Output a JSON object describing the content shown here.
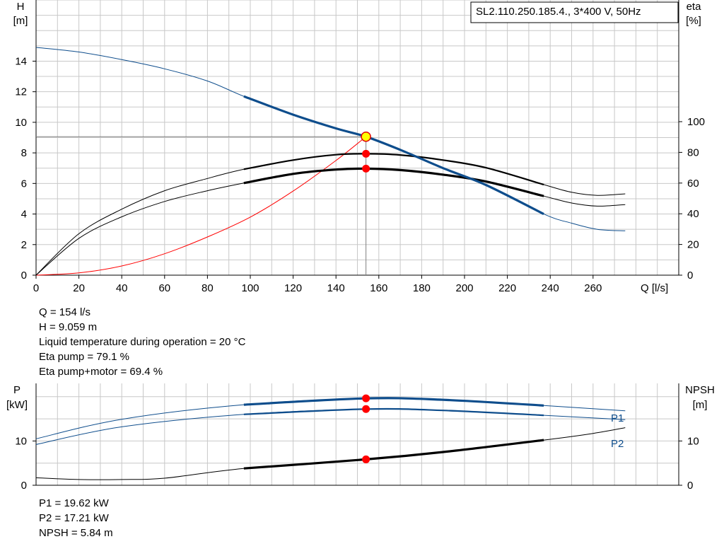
{
  "pump_label": "SL2.110.250.185.4., 3*400 V, 50Hz",
  "colors": {
    "head": "#0e4d8c",
    "eta": "#000000",
    "system": "#ff0000",
    "grid": "#c8c8c8",
    "op_marker": "#ff0000",
    "duty_marker_fill": "#ffff00"
  },
  "operating_point": {
    "q": "Q = 154 l/s",
    "h": "H = 9.059 m",
    "temp": "Liquid temperature during operation = 20 °C",
    "eta_pump": "Eta pump = 79.1 %",
    "eta_total": "Eta pump+motor = 69.4 %"
  },
  "power_readout": {
    "p1": "P1 = 19.62 kW",
    "p2": "P2 = 17.21 kW",
    "npsh": "NPSH = 5.84 m"
  },
  "chart_data": [
    {
      "type": "line",
      "name": "head-efficiency",
      "x_label": "Q [l/s]",
      "y_left_label": [
        "H",
        "[m]"
      ],
      "y_right_label": [
        "eta",
        "[%]"
      ],
      "x_ticks": [
        0,
        20,
        40,
        60,
        80,
        100,
        120,
        140,
        160,
        180,
        200,
        220,
        240,
        260
      ],
      "y_left_ticks": [
        0,
        2,
        4,
        6,
        8,
        10,
        12,
        14
      ],
      "y_right_ticks": [
        0,
        20,
        40,
        60,
        80,
        100
      ],
      "xlim": [
        0,
        300
      ],
      "ylim_left": [
        0,
        18
      ],
      "ylim_right": [
        0,
        100
      ],
      "operating_range": [
        97,
        237
      ],
      "duty_point": {
        "q": 154,
        "h": 9.059
      },
      "head_curve": [
        [
          0,
          14.9
        ],
        [
          20,
          14.6
        ],
        [
          40,
          14.1
        ],
        [
          60,
          13.5
        ],
        [
          80,
          12.7
        ],
        [
          97,
          11.7
        ],
        [
          120,
          10.5
        ],
        [
          140,
          9.6
        ],
        [
          154,
          9.06
        ],
        [
          170,
          8.2
        ],
        [
          190,
          7.0
        ],
        [
          210,
          5.9
        ],
        [
          237,
          4.0
        ],
        [
          250,
          3.4
        ],
        [
          262,
          3.0
        ],
        [
          275,
          2.9
        ]
      ],
      "eta_pump_curve": [
        [
          0,
          0
        ],
        [
          20,
          27
        ],
        [
          40,
          43
        ],
        [
          60,
          55
        ],
        [
          80,
          63
        ],
        [
          97,
          69
        ],
        [
          120,
          75
        ],
        [
          140,
          78.5
        ],
        [
          154,
          79.1
        ],
        [
          170,
          78.3
        ],
        [
          190,
          75
        ],
        [
          210,
          70
        ],
        [
          237,
          59
        ],
        [
          250,
          54
        ],
        [
          262,
          52
        ],
        [
          275,
          53
        ]
      ],
      "eta_total_curve": [
        [
          0,
          0
        ],
        [
          20,
          24
        ],
        [
          40,
          38
        ],
        [
          60,
          48
        ],
        [
          80,
          55
        ],
        [
          97,
          60
        ],
        [
          120,
          66
        ],
        [
          140,
          68.8
        ],
        [
          154,
          69.4
        ],
        [
          170,
          68.5
        ],
        [
          190,
          65.5
        ],
        [
          210,
          61
        ],
        [
          237,
          51.5
        ],
        [
          250,
          47
        ],
        [
          262,
          45
        ],
        [
          275,
          46
        ]
      ],
      "system_curve": [
        [
          0,
          0
        ],
        [
          20,
          0.15
        ],
        [
          40,
          0.6
        ],
        [
          60,
          1.4
        ],
        [
          80,
          2.5
        ],
        [
          100,
          3.8
        ],
        [
          120,
          5.5
        ],
        [
          140,
          7.5
        ],
        [
          154,
          9.06
        ]
      ],
      "markers": [
        {
          "series": "eta_pump_curve",
          "q": 154,
          "eta": 79.1
        },
        {
          "series": "eta_total_curve",
          "q": 154,
          "eta": 69.4
        }
      ]
    },
    {
      "type": "line",
      "name": "power-npsh",
      "y_left_label": [
        "P",
        "[kW]"
      ],
      "y_right_label": [
        "NPSH",
        "[m]"
      ],
      "y_left_ticks": [
        0,
        10
      ],
      "y_right_ticks": [
        0,
        10
      ],
      "xlim": [
        0,
        300
      ],
      "ylim_left": [
        0,
        23
      ],
      "ylim_right": [
        0,
        23
      ],
      "p1_label": "P1",
      "p2_label": "P2",
      "p1_curve": [
        [
          0,
          10.5
        ],
        [
          40,
          14.9
        ],
        [
          97,
          18.2
        ],
        [
          154,
          19.62
        ],
        [
          190,
          19.3
        ],
        [
          237,
          18.0
        ],
        [
          275,
          16.8
        ]
      ],
      "p2_curve": [
        [
          0,
          9.2
        ],
        [
          40,
          13.2
        ],
        [
          97,
          16.0
        ],
        [
          154,
          17.21
        ],
        [
          190,
          16.9
        ],
        [
          237,
          15.8
        ],
        [
          275,
          14.8
        ]
      ],
      "npsh_curve": [
        [
          0,
          1.7
        ],
        [
          20,
          1.3
        ],
        [
          40,
          1.3
        ],
        [
          60,
          1.6
        ],
        [
          97,
          3.8
        ],
        [
          154,
          5.84
        ],
        [
          190,
          7.5
        ],
        [
          237,
          10.2
        ],
        [
          260,
          11.7
        ],
        [
          275,
          13.0
        ]
      ],
      "markers": [
        {
          "series": "p1_curve",
          "q": 154,
          "value": 19.62
        },
        {
          "series": "p2_curve",
          "q": 154,
          "value": 17.21
        },
        {
          "series": "npsh_curve",
          "q": 154,
          "value": 5.84
        }
      ]
    }
  ]
}
